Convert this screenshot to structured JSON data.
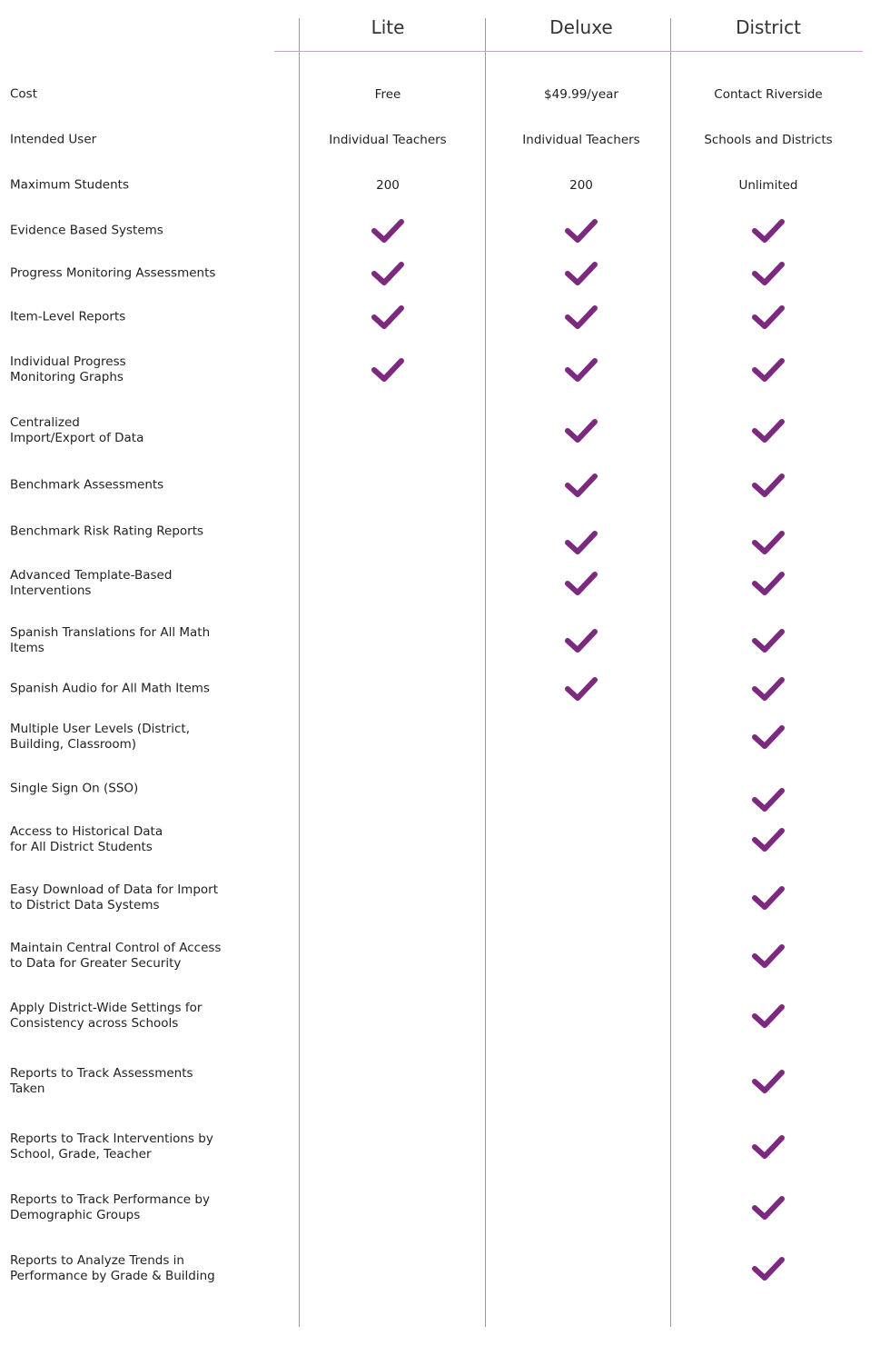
{
  "accent_color": "#7b2a7f",
  "columns": [
    "Lite",
    "Deluxe",
    "District"
  ],
  "rows": [
    {
      "label": "Cost",
      "values": [
        "Free",
        "$49.99/year",
        "Contact Riverside"
      ]
    },
    {
      "label": "Intended User",
      "values": [
        "Individual Teachers",
        "Individual Teachers",
        "Schools and Districts"
      ]
    },
    {
      "label": "Maximum Students",
      "values": [
        "200",
        "200",
        "Unlimited"
      ]
    },
    {
      "label": "Evidence Based Systems",
      "checks": [
        true,
        true,
        true
      ]
    },
    {
      "label": "Progress Monitoring Assessments",
      "checks": [
        true,
        true,
        true
      ]
    },
    {
      "label": "Item-Level Reports",
      "checks": [
        true,
        true,
        true
      ]
    },
    {
      "label": "Individual Progress\nMonitoring Graphs",
      "checks": [
        true,
        true,
        true
      ]
    },
    {
      "label": "Centralized\nImport/Export of Data",
      "checks": [
        false,
        true,
        true
      ]
    },
    {
      "label": "Benchmark Assessments",
      "checks": [
        false,
        true,
        true
      ]
    },
    {
      "label": "Benchmark Risk Rating Reports",
      "checks": [
        false,
        true,
        true
      ]
    },
    {
      "label": "Advanced Template-Based\nInterventions",
      "checks": [
        false,
        true,
        true
      ]
    },
    {
      "label": "Spanish Translations for All Math\nItems",
      "checks": [
        false,
        true,
        true
      ]
    },
    {
      "label": "Spanish Audio for All Math Items",
      "checks": [
        false,
        true,
        true
      ]
    },
    {
      "label": "Multiple User Levels (District,\nBuilding, Classroom)",
      "checks": [
        false,
        false,
        true
      ]
    },
    {
      "label": "Single Sign On (SSO)",
      "checks": [
        false,
        false,
        true
      ]
    },
    {
      "label": "Access to Historical Data\nfor All District Students",
      "checks": [
        false,
        false,
        true
      ]
    },
    {
      "label": "Easy Download of Data for Import\nto District Data Systems",
      "checks": [
        false,
        false,
        true
      ]
    },
    {
      "label": "Maintain Central Control of Access\nto Data for Greater Security",
      "checks": [
        false,
        false,
        true
      ]
    },
    {
      "label": "Apply District-Wide Settings for\nConsistency across Schools",
      "checks": [
        false,
        false,
        true
      ]
    },
    {
      "label": "Reports to Track Assessments\nTaken",
      "checks": [
        false,
        false,
        true
      ]
    },
    {
      "label": "Reports to Track Interventions by\nSchool, Grade, Teacher",
      "checks": [
        false,
        false,
        true
      ]
    },
    {
      "label": "Reports to Track Performance by\nDemographic Groups",
      "checks": [
        false,
        false,
        true
      ]
    },
    {
      "label": "Reports to Analyze Trends in\nPerformance by Grade & Building",
      "checks": [
        false,
        false,
        true
      ]
    }
  ]
}
